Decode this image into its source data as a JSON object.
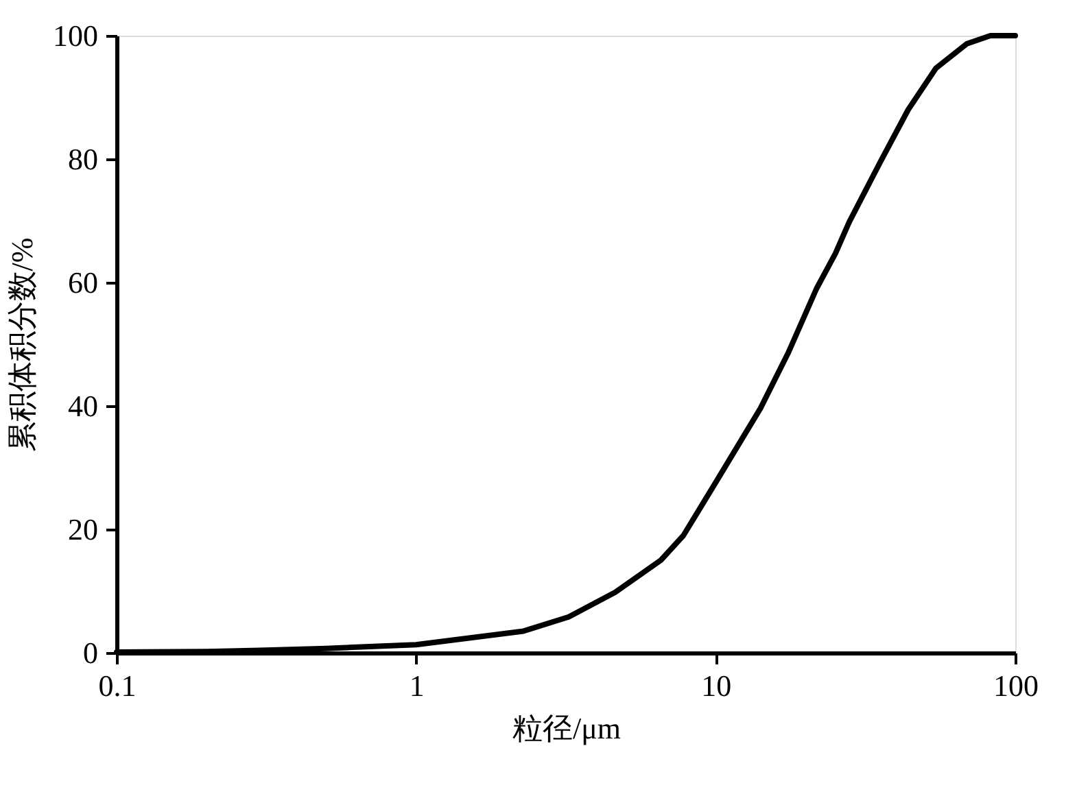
{
  "chart_data": {
    "type": "line",
    "xlabel": "粒径/μm",
    "ylabel": "累积体积分数/%",
    "log": "x",
    "x": [
      0.1,
      0.2,
      0.3,
      0.5,
      1,
      2.28,
      3.23,
      4.62,
      6.56,
      7.8,
      10,
      14.1,
      17.5,
      21.7,
      25.1,
      27.9,
      35.5,
      43.9,
      54.3,
      69,
      82.6,
      100
    ],
    "series": [
      {
        "color": "#000000",
        "values": [
          0.1,
          0.2,
          0.4,
          0.7,
          1.3,
          3.5,
          5.8,
          9.8,
          15,
          19,
          27.6,
          39.6,
          48.7,
          59,
          64.7,
          69.8,
          79.6,
          88,
          94.7,
          98.7,
          100,
          100
        ]
      }
    ],
    "xlim": [
      0.1,
      100
    ],
    "xticks": [
      0.1,
      1,
      10,
      100
    ],
    "ylim": [
      0,
      100
    ],
    "yticks": [
      0,
      20,
      40,
      60,
      80,
      100
    ],
    "grid": false,
    "legend": false,
    "marker": "none",
    "line_style": "solid"
  }
}
